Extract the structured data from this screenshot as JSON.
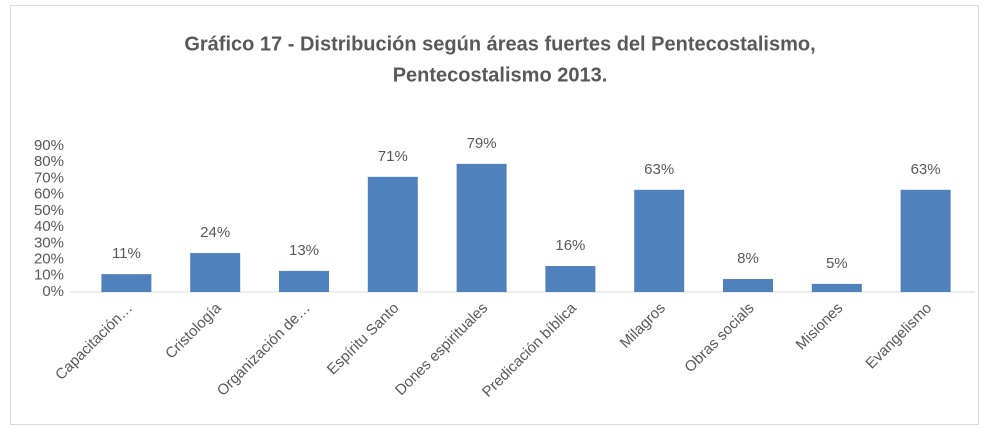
{
  "chart_data": {
    "type": "bar",
    "title": [
      "Gráfico  17  - Distribución según áreas fuertes del Pentecostalismo,",
      "Pentecostalismo 2013."
    ],
    "categories": [
      "Capacitación…",
      "Cristología",
      "Organización de…",
      "Espíritu Santo",
      "Dones espirituales",
      "Predicación bíblica",
      "Milagros",
      "Obras socials",
      "Misiones",
      "Evangelismo"
    ],
    "values": [
      11,
      24,
      13,
      71,
      79,
      16,
      63,
      8,
      5,
      63
    ],
    "value_labels": [
      "11%",
      "24%",
      "13%",
      "71%",
      "79%",
      "16%",
      "63%",
      "8%",
      "5%",
      "63%"
    ],
    "color": "#4f81bd",
    "ylim": [
      0,
      90
    ],
    "yticks": [
      {
        "value": 0,
        "label": "0%"
      },
      {
        "value": 10,
        "label": "10%"
      },
      {
        "value": 20,
        "label": "20%"
      },
      {
        "value": 30,
        "label": "30%"
      },
      {
        "value": 40,
        "label": "40%"
      },
      {
        "value": 50,
        "label": "50%"
      },
      {
        "value": 60,
        "label": "60%"
      },
      {
        "value": 70,
        "label": "70%"
      },
      {
        "value": 80,
        "label": "80%"
      },
      {
        "value": 90,
        "label": "90%"
      }
    ],
    "grid": false
  }
}
